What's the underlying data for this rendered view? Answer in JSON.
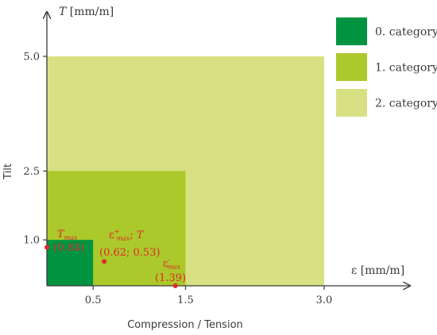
{
  "chart_data": {
    "type": "area",
    "x_axis": {
      "label": "ε [mm/m]",
      "ticks": [
        0.5,
        1.5,
        3.0
      ],
      "tick_labels": [
        "0.5",
        "1.5",
        "3.0"
      ],
      "range": [
        0,
        3.9
      ],
      "title_below": "Compression / Tension"
    },
    "y_axis": {
      "label": "T [mm/m]",
      "ticks": [
        1.0,
        2.5,
        5.0
      ],
      "tick_labels": [
        "1.0",
        "2.5",
        "5.0"
      ],
      "range": [
        0,
        5.6
      ],
      "title_side": "Tilt"
    },
    "categories": [
      {
        "name": "2. category",
        "x_max": 3.0,
        "y_max": 5.0,
        "color": "#d7e183"
      },
      {
        "name": "1. category",
        "x_max": 1.5,
        "y_max": 2.5,
        "color": "#abc92a"
      },
      {
        "name": "0. category",
        "x_max": 0.5,
        "y_max": 1.0,
        "color": "#009441"
      }
    ],
    "legend": {
      "position": "top-right",
      "order": [
        "0. category",
        "1. category",
        "2. category"
      ]
    },
    "annotations": [
      {
        "id": "tmax",
        "x": 0.0,
        "y": 0.84,
        "symbol": "T",
        "sub": "max",
        "sup": "",
        "value_label": "(0.84)",
        "color": "#e0282d"
      },
      {
        "id": "eps-t",
        "x": 0.62,
        "y": 0.53,
        "symbol": "ε",
        "sub": "max",
        "sup": "+",
        "suffix": "; T",
        "value_label": "(0.62; 0.53)",
        "color": "#e0282d"
      },
      {
        "id": "eps-c",
        "x": 1.39,
        "y": 0.0,
        "symbol": "ε",
        "sub": "max",
        "sup": "-",
        "value_label": "(1.39)",
        "color": "#e0282d"
      }
    ],
    "grid": false
  }
}
